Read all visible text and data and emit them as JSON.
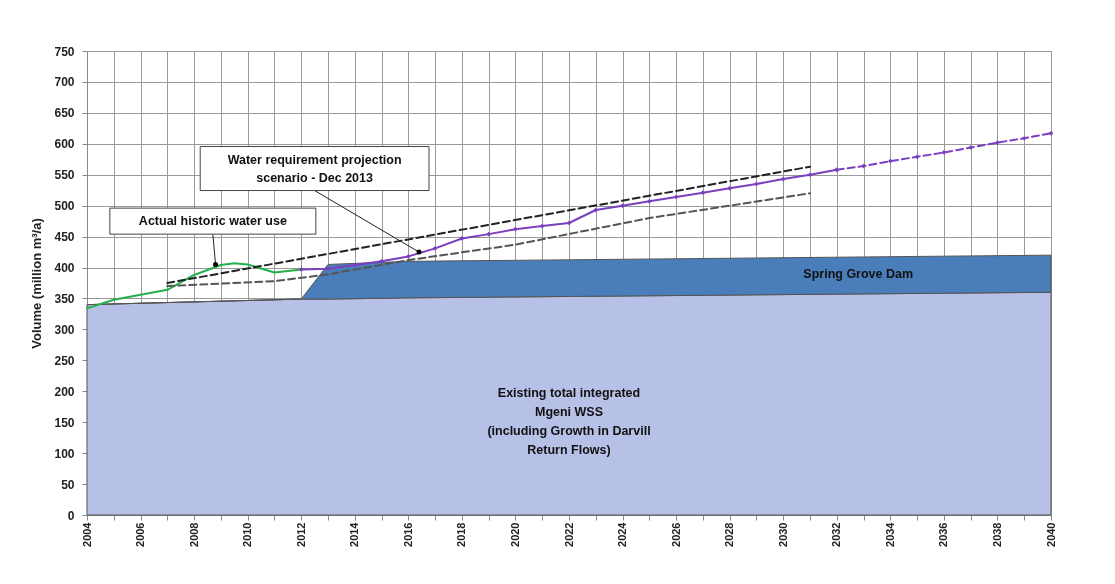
{
  "chart_data": {
    "type": "line",
    "ylabel": "Volume (million m³/a)",
    "stacked": true,
    "grid": true,
    "x": [
      2004,
      2012,
      2013,
      2016,
      2040
    ],
    "xlim": [
      2004,
      2040
    ],
    "xticks": [
      2004,
      {
        "value": 2005,
        "label": null
      },
      2006,
      {
        "value": 2007,
        "label": null
      },
      2008,
      {
        "value": 2009,
        "label": null
      },
      2010,
      {
        "value": 2011,
        "label": null
      },
      2012,
      {
        "value": 2013,
        "label": null
      },
      2014,
      {
        "value": 2015,
        "label": null
      },
      2016,
      {
        "value": 2017,
        "label": null
      },
      2018,
      {
        "value": 2019,
        "label": null
      },
      2020,
      {
        "value": 2021,
        "label": null
      },
      2022,
      {
        "value": 2023,
        "label": null
      },
      2024,
      {
        "value": 2025,
        "label": null
      },
      2026,
      {
        "value": 2027,
        "label": null
      },
      2028,
      {
        "value": 2029,
        "label": null
      },
      2030,
      {
        "value": 2031,
        "label": null
      },
      2032,
      {
        "value": 2033,
        "label": null
      },
      2034,
      {
        "value": 2035,
        "label": null
      },
      2036,
      {
        "value": 2037,
        "label": null
      },
      2038,
      {
        "value": 2039,
        "label": null
      },
      2040
    ],
    "ylim": [
      0,
      750
    ],
    "yticks": [
      0,
      50,
      100,
      150,
      200,
      250,
      300,
      350,
      400,
      450,
      500,
      550,
      600,
      650,
      700,
      750
    ],
    "series": [
      {
        "name": "Existing total integrated\nMgeni WSS\n(including Growth in Darvill\nReturn Flows)",
        "type": "area",
        "color": "#b7c0e6",
        "values": [
          340,
          349,
          349,
          351,
          360
        ]
      },
      {
        "name": "Spring Grove Dam",
        "type": "area",
        "color": "#4a7ebb",
        "values": [
          0,
          0,
          56,
          59,
          60
        ]
      },
      {
        "color": "#22b14c",
        "line_style": "solid",
        "marker": "none",
        "x": [
          2004,
          2005,
          2006,
          2007,
          2008,
          2009,
          2009.5,
          2010,
          2011,
          2012
        ],
        "values": [
          334,
          348,
          356,
          364,
          388,
          404,
          407,
          405,
          392,
          397
        ]
      },
      {
        "color": "#7b3fbf",
        "line_style": "solid",
        "marker": "diamond",
        "x": [
          2012,
          2013,
          2014,
          2015,
          2016,
          2017,
          2018,
          2019,
          2020,
          2021,
          2022,
          2023,
          2024,
          2025,
          2026,
          2027,
          2028,
          2029,
          2030,
          2031,
          2032
        ],
        "values": [
          397,
          398,
          404,
          410,
          418,
          431,
          447,
          454,
          462,
          467,
          472,
          493,
          500,
          507,
          514,
          521,
          528,
          535,
          543,
          550,
          558
        ]
      },
      {
        "color": "#7b3fbf",
        "line_style": "dashed",
        "marker": "diamond",
        "x": [
          2032,
          2033,
          2034,
          2035,
          2036,
          2037,
          2038,
          2039,
          2040
        ],
        "values": [
          558,
          564,
          572,
          579,
          586,
          594,
          602,
          609,
          617
        ]
      },
      {
        "color": "#222222",
        "line_style": "dashed",
        "marker": "none",
        "x": [
          2007,
          2031
        ],
        "values": [
          375,
          563
        ]
      },
      {
        "color": "#555555",
        "line_style": "dashed",
        "marker": "none",
        "x": [
          2007,
          2009,
          2011,
          2013,
          2016,
          2020,
          2025,
          2031
        ],
        "values": [
          370,
          374,
          378,
          389,
          412,
          437,
          480,
          520
        ]
      }
    ],
    "annotations": [
      {
        "text": "Actual historic water use",
        "x": 2008.8,
        "y": 405
      },
      {
        "text": "Water requirement projection scenario - Dec 2013",
        "x": 2016.4,
        "y": 425
      }
    ]
  }
}
